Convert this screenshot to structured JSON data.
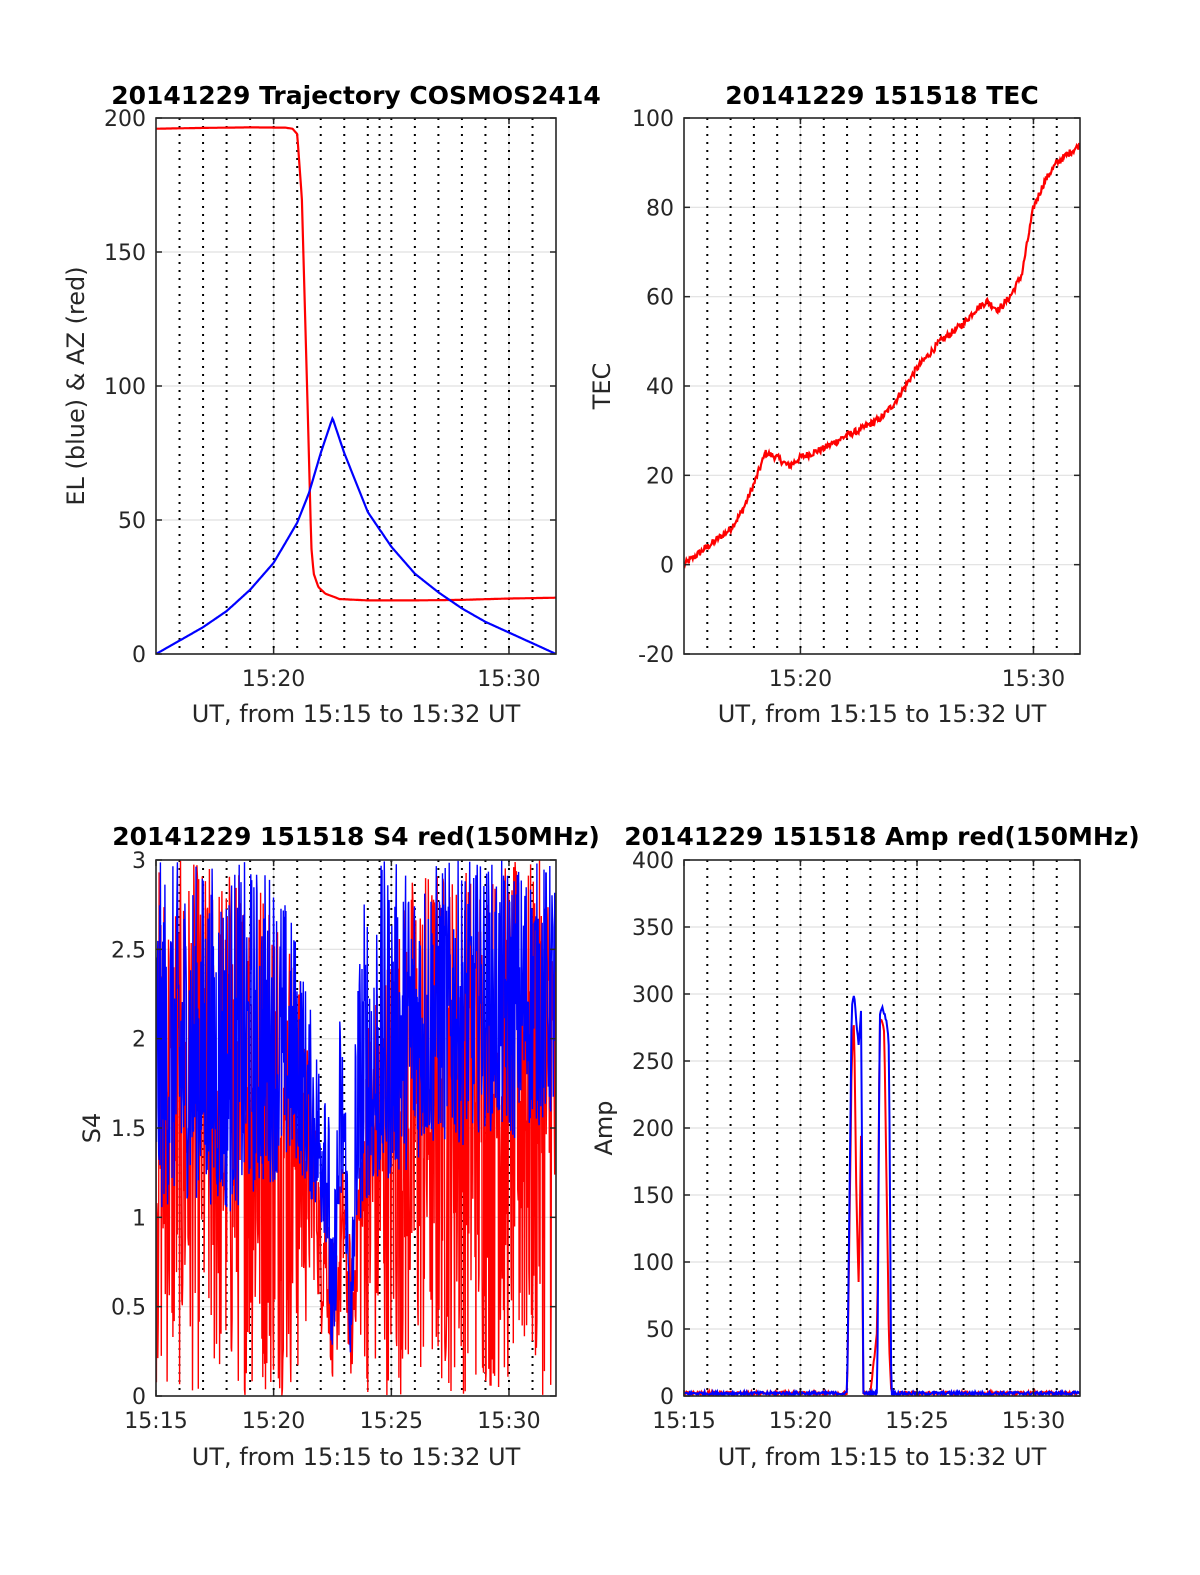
{
  "colors": {
    "red": "#ff0000",
    "blue": "#0000ff",
    "axis": "#262626",
    "grid": "#e0e0e0"
  },
  "chart_data": [
    {
      "type": "line",
      "title": "20141229 Trajectory COSMOS2414",
      "xlabel": "UT, from 15:15 to 15:32 UT",
      "ylabel": "EL (blue) & AZ (red)",
      "xlim": [
        15.25,
        15.5333
      ],
      "ylim": [
        0,
        200
      ],
      "xticks": [
        {
          "v": 15.3333,
          "label": "15:20"
        },
        {
          "v": 15.5,
          "label": "15:30"
        }
      ],
      "yticks": [
        0,
        50,
        100,
        150,
        200
      ],
      "series": [
        {
          "color": "red",
          "x": [
            15.25,
            15.2833,
            15.3167,
            15.3417,
            15.3467,
            15.35,
            15.3533,
            15.3575,
            15.36,
            15.3617,
            15.365,
            15.37,
            15.38,
            15.4,
            15.4333,
            15.4667,
            15.5,
            15.5333
          ],
          "y": [
            196,
            196.3,
            196.5,
            196.4,
            196,
            194,
            170,
            90,
            40,
            30,
            25,
            22.5,
            20.5,
            20,
            20,
            20.2,
            20.7,
            21
          ]
        },
        {
          "color": "blue",
          "x": [
            15.25,
            15.2667,
            15.2833,
            15.3,
            15.3167,
            15.3333,
            15.35,
            15.3583,
            15.3667,
            15.375,
            15.3833,
            15.4,
            15.4167,
            15.4333,
            15.45,
            15.4667,
            15.4833,
            15.5,
            15.5167,
            15.5333
          ],
          "y": [
            0,
            5,
            10,
            16,
            24,
            34,
            49,
            60,
            75,
            88,
            75,
            53,
            40,
            30,
            23,
            17,
            12,
            8,
            4,
            0
          ]
        }
      ]
    },
    {
      "type": "line",
      "title": "20141229 151518 TEC",
      "xlabel": "UT, from 15:15 to 15:32 UT",
      "ylabel": "TEC",
      "xlim": [
        15.25,
        15.5333
      ],
      "ylim": [
        -20,
        100
      ],
      "xticks": [
        {
          "v": 15.3333,
          "label": "15:20"
        },
        {
          "v": 15.5,
          "label": "15:30"
        }
      ],
      "yticks": [
        -20,
        0,
        20,
        40,
        60,
        80,
        100
      ],
      "series": [
        {
          "color": "red",
          "x": [
            15.25,
            15.2667,
            15.2833,
            15.2917,
            15.3,
            15.3083,
            15.3167,
            15.325,
            15.3333,
            15.35,
            15.3667,
            15.375,
            15.3917,
            15.4,
            15.4167,
            15.4333,
            15.45,
            15.4583,
            15.4667,
            15.475,
            15.4833,
            15.4917,
            15.5,
            15.5083,
            15.5167,
            15.5333
          ],
          "y": [
            0,
            4,
            8,
            12,
            18,
            25,
            24,
            22,
            24,
            26,
            29,
            30,
            33,
            36,
            44,
            50,
            54,
            57,
            59,
            57,
            60,
            65,
            80,
            86,
            90,
            94
          ]
        }
      ]
    },
    {
      "type": "line",
      "title": "20141229 151518 S4 red(150MHz)",
      "xlabel": "UT, from 15:15 to 15:32 UT",
      "ylabel": "S4",
      "xlim": [
        15.25,
        15.5333
      ],
      "ylim": [
        0,
        3
      ],
      "xticks": [
        {
          "v": 15.25,
          "label": "15:15"
        },
        {
          "v": 15.3333,
          "label": "15:20"
        },
        {
          "v": 15.4167,
          "label": "15:25"
        },
        {
          "v": 15.5,
          "label": "15:30"
        }
      ],
      "yticks": [
        0,
        0.5,
        1,
        1.5,
        2,
        2.5,
        3
      ],
      "series": [
        {
          "color": "red",
          "x": [
            15.25,
            15.2667,
            15.2833,
            15.3,
            15.3167,
            15.3333,
            15.35,
            15.3633,
            15.3667,
            15.37,
            15.375,
            15.38,
            15.3833,
            15.3883,
            15.3917,
            15.4,
            15.4167,
            15.4333,
            15.45,
            15.4667,
            15.4833,
            15.5,
            15.5167,
            15.5333
          ],
          "y": [
            1.5,
            1.6,
            1.7,
            1.6,
            1.6,
            1.5,
            1.6,
            1.2,
            0.7,
            0.9,
            0.1,
            0.7,
            1.0,
            0.1,
            0.9,
            1.3,
            1.5,
            1.6,
            1.7,
            1.8,
            1.8,
            1.7,
            1.9,
            1.8
          ],
          "min": [
            0,
            0,
            0,
            0,
            0,
            0,
            0,
            0.7,
            0.3,
            0.5,
            0.1,
            0.3,
            0.5,
            0.1,
            0.4,
            0,
            0,
            0,
            0,
            0,
            0,
            0,
            0,
            0
          ],
          "max": [
            3,
            3,
            3,
            3,
            3,
            3,
            2.5,
            1.6,
            1.2,
            1.4,
            0.8,
            1.2,
            1.4,
            0.8,
            1.3,
            2.2,
            2.6,
            3,
            3,
            3,
            3,
            3,
            3,
            3
          ]
        },
        {
          "color": "blue",
          "x": [
            15.25,
            15.2667,
            15.2833,
            15.3,
            15.3167,
            15.3333,
            15.35,
            15.3633,
            15.3667,
            15.37,
            15.375,
            15.38,
            15.3833,
            15.3883,
            15.3917,
            15.4,
            15.4167,
            15.4333,
            15.45,
            15.4667,
            15.4833,
            15.5,
            15.5167,
            15.5333
          ],
          "y": [
            1.7,
            1.8,
            1.8,
            1.7,
            1.8,
            1.8,
            1.8,
            1.5,
            1.3,
            1.5,
            0.1,
            1.4,
            1.5,
            0.1,
            1.4,
            1.6,
            1.8,
            2.0,
            2.1,
            2.1,
            2.2,
            2.1,
            2.2,
            2.2
          ],
          "min": [
            1.0,
            1.1,
            1.1,
            1.0,
            1.1,
            1.2,
            1.3,
            1.0,
            0.9,
            0.9,
            0.1,
            0.9,
            1.0,
            0.1,
            0.9,
            1.1,
            1.2,
            1.3,
            1.4,
            1.4,
            1.5,
            1.4,
            1.5,
            1.5
          ],
          "max": [
            3,
            3,
            3,
            3,
            3,
            3,
            2.6,
            2.0,
            2.0,
            2.4,
            0.8,
            2.2,
            2.0,
            0.8,
            2.4,
            3,
            3,
            3,
            3,
            3,
            3,
            3,
            3,
            3
          ]
        }
      ]
    },
    {
      "type": "line",
      "title": "20141229 151518 Amp red(150MHz)",
      "xlabel": "UT, from 15:15 to 15:32 UT",
      "ylabel": "Amp",
      "xlim": [
        15.25,
        15.5333
      ],
      "ylim": [
        0,
        400
      ],
      "xticks": [
        {
          "v": 15.25,
          "label": "15:15"
        },
        {
          "v": 15.3333,
          "label": "15:20"
        },
        {
          "v": 15.4167,
          "label": "15:25"
        },
        {
          "v": 15.5,
          "label": "15:30"
        }
      ],
      "yticks": [
        0,
        50,
        100,
        150,
        200,
        250,
        300,
        350,
        400
      ],
      "series": [
        {
          "color": "red",
          "x": [
            15.25,
            15.3667,
            15.37,
            15.3717,
            15.3733,
            15.375,
            15.3767,
            15.3783,
            15.38,
            15.3833,
            15.3883,
            15.39,
            15.3917,
            15.3933,
            15.395,
            15.3967,
            15.3983,
            15.5333
          ],
          "y": [
            2,
            2,
            250,
            280,
            150,
            80,
            200,
            2,
            2,
            2,
            50,
            280,
            280,
            270,
            150,
            40,
            2,
            2
          ]
        },
        {
          "color": "blue",
          "x": [
            15.25,
            15.3667,
            15.37,
            15.3717,
            15.3733,
            15.375,
            15.3767,
            15.3783,
            15.38,
            15.3833,
            15.3883,
            15.39,
            15.3917,
            15.3933,
            15.395,
            15.3967,
            15.3983,
            15.5333
          ],
          "y": [
            2,
            2,
            290,
            300,
            280,
            260,
            290,
            2,
            2,
            2,
            2,
            285,
            290,
            285,
            280,
            260,
            2,
            2
          ]
        }
      ]
    }
  ]
}
